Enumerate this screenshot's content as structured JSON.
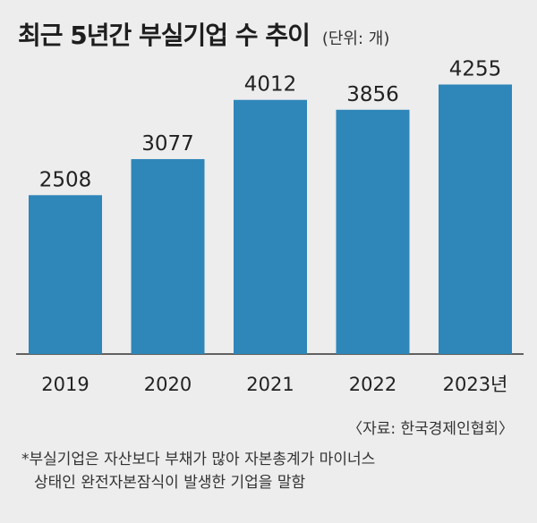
{
  "header": {
    "title": "최근 5년간 부실기업 수 추이",
    "unit": "(단위: 개)"
  },
  "chart_data": {
    "type": "bar",
    "title": "최근 5년간 부실기업 수 추이",
    "unit": "(단위: 개)",
    "categories": [
      "2019",
      "2020",
      "2021",
      "2022",
      "2023년"
    ],
    "values": [
      2508,
      3077,
      4012,
      3856,
      4255
    ],
    "xlabel": "",
    "ylabel": "",
    "ylim": [
      0,
      4700
    ],
    "grid": false,
    "bar_color": "#2f86b9"
  },
  "source": "〈자료: 한국경제인협회〉",
  "footnote": {
    "line1": "*부실기업은 자산보다 부채가 많아 자본총계가 마이너스",
    "line2": "상태인 완전자본잠식이 발생한 기업을 말함"
  }
}
